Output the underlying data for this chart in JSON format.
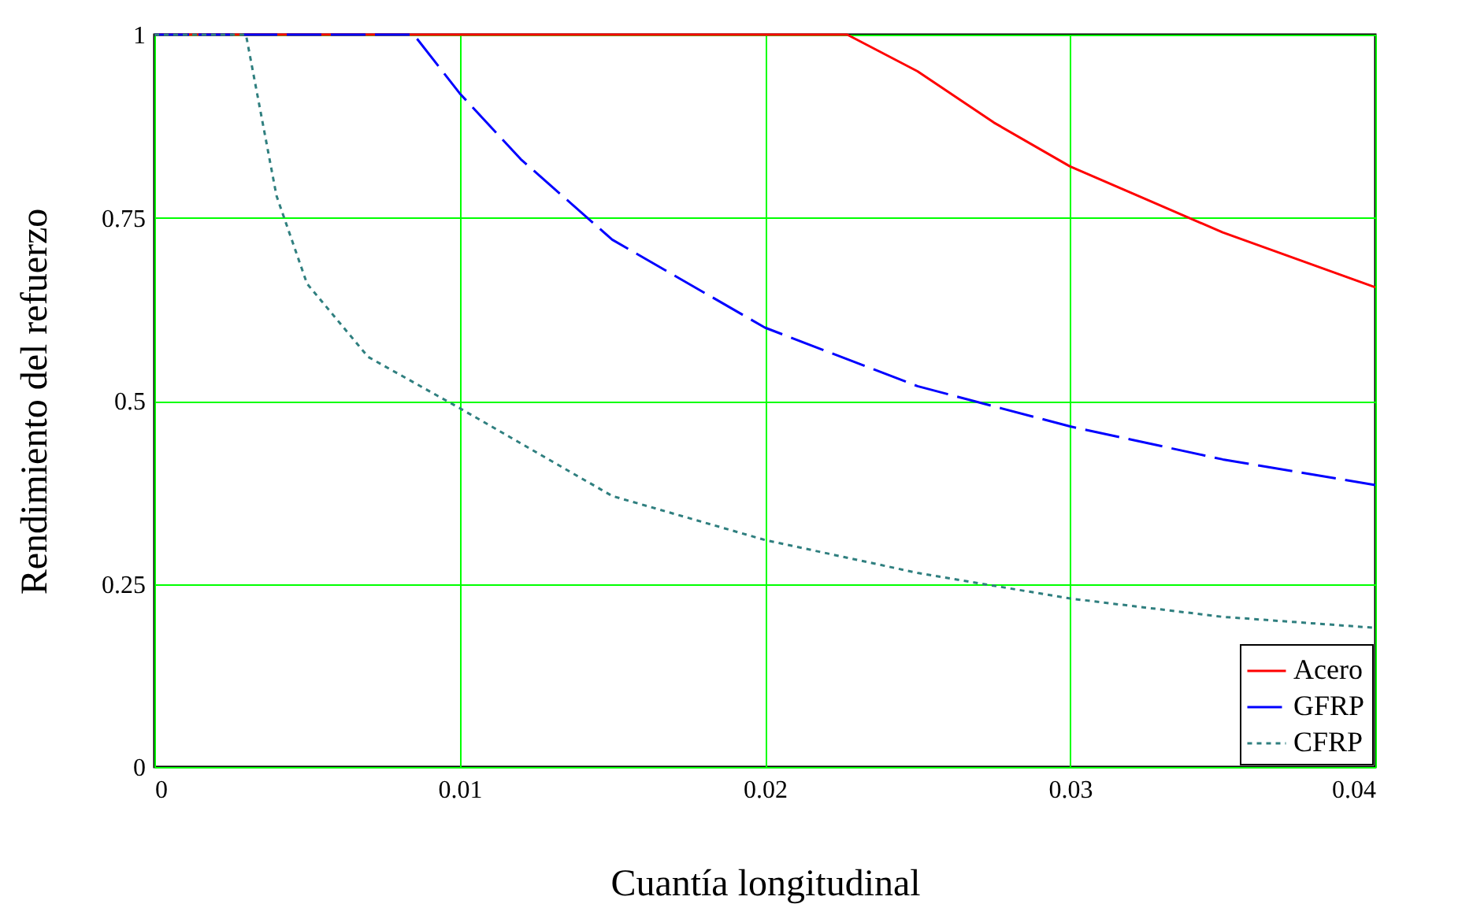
{
  "chart_data": {
    "type": "line",
    "xlabel": "Cuantía longitudinal",
    "ylabel": "Rendimiento del refuerzo",
    "xlim": [
      0,
      0.04
    ],
    "xticks": [
      0,
      0.01,
      0.02,
      0.03,
      0.04
    ],
    "ylim": [
      0,
      1
    ],
    "yticks": [
      0,
      0.25,
      0.5,
      0.75,
      1
    ],
    "grid": true,
    "legend": "bottom right",
    "marker": "none",
    "series": [
      {
        "name": "Acero",
        "color": "#ff0000",
        "line_style": "solid",
        "x": [
          0,
          0.0227,
          0.025,
          0.0275,
          0.03,
          0.035,
          0.04
        ],
        "values": [
          1,
          1,
          0.95,
          0.88,
          0.82,
          0.73,
          0.655
        ]
      },
      {
        "name": "GFRP",
        "color": "#0000ff",
        "line_style": "dashed",
        "x": [
          0,
          0.0085,
          0.01,
          0.012,
          0.015,
          0.02,
          0.025,
          0.03,
          0.035,
          0.04
        ],
        "values": [
          1,
          1,
          0.92,
          0.83,
          0.72,
          0.6,
          0.52,
          0.465,
          0.42,
          0.385
        ]
      },
      {
        "name": "CFRP",
        "color": "#2f7f7f",
        "line_style": "dotted",
        "x": [
          0,
          0.003,
          0.004,
          0.005,
          0.007,
          0.01,
          0.015,
          0.02,
          0.025,
          0.03,
          0.035,
          0.04
        ],
        "values": [
          1,
          1,
          0.78,
          0.66,
          0.56,
          0.49,
          0.37,
          0.31,
          0.265,
          0.23,
          0.205,
          0.19
        ]
      }
    ]
  }
}
